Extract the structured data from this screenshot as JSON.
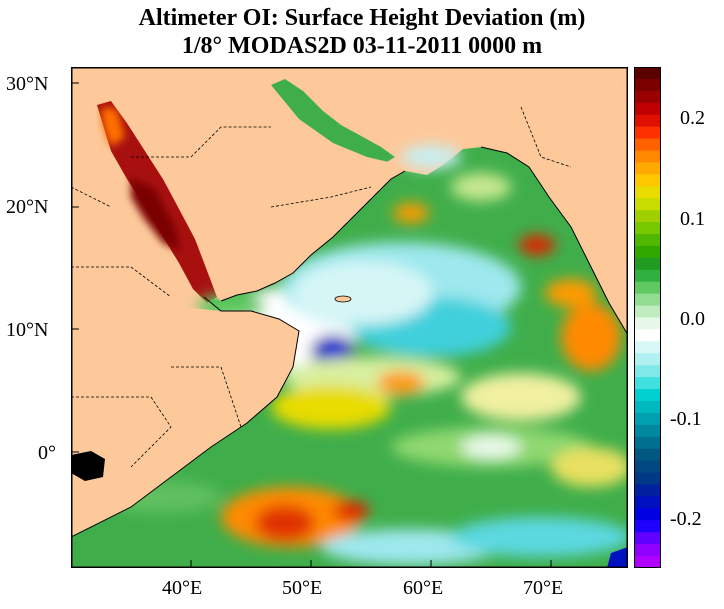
{
  "title": "Altimeter OI: Surface Height Deviation (m)",
  "subtitle": "1/8° MODAS2D 03-11-2011 0000 m",
  "map": {
    "lat_labels": [
      "30°N",
      "20°N",
      "10°N",
      "0°"
    ],
    "lon_labels": [
      "40°E",
      "50°E",
      "60°E",
      "70°E"
    ],
    "colors": {
      "land": "#FDC99A",
      "border": "#000000"
    }
  },
  "colorbar": {
    "tick_labels": [
      "0.2",
      "0.1",
      "0.0",
      "-0.1",
      "-0.2"
    ],
    "colors": [
      "#5a0000",
      "#7a0000",
      "#9a0000",
      "#c00000",
      "#e01000",
      "#ff3000",
      "#ff6000",
      "#ff8800",
      "#ffaa00",
      "#ffc800",
      "#e8dc00",
      "#c8dc00",
      "#a0d000",
      "#78c800",
      "#50b800",
      "#30a800",
      "#209c20",
      "#30b040",
      "#60c860",
      "#90dc90",
      "#c0ecc0",
      "#e8f8e8",
      "#ffffff",
      "#d8f8f8",
      "#b0f0f0",
      "#80e8e8",
      "#40e0e0",
      "#00d0d0",
      "#00b8c0",
      "#00a0b0",
      "#0088a0",
      "#007090",
      "#005880",
      "#004880",
      "#003888",
      "#0020a0",
      "#0010c0",
      "#0000e0",
      "#2000ff",
      "#6000ff",
      "#9000ff",
      "#b000ff"
    ]
  }
}
